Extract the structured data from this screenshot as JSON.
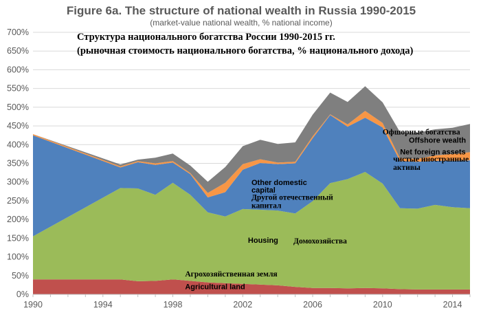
{
  "chart_data": {
    "type": "area",
    "stacked": true,
    "title": "Figure 6a. The structure of national wealth in Russia 1990-2015",
    "subtitle": "(market-value national wealth, % national income)",
    "title_ru_line1": "Структура национального богатства России 1990-2015 гг.",
    "title_ru_line2": "(рыночная стоимость национального богатства, % национального дохода)",
    "x": [
      1990,
      1995,
      1996,
      1997,
      1998,
      1999,
      2000,
      2001,
      2002,
      2003,
      2004,
      2005,
      2006,
      2007,
      2008,
      2009,
      2010,
      2011,
      2012,
      2013,
      2014,
      2015
    ],
    "xlim": [
      1990,
      2015
    ],
    "xticks": [
      1990,
      1994,
      1998,
      2002,
      2006,
      2010,
      2014
    ],
    "ylim": [
      0,
      700
    ],
    "yticks": [
      0,
      50,
      100,
      150,
      200,
      250,
      300,
      350,
      400,
      450,
      500,
      550,
      600,
      650,
      700
    ],
    "ytick_suffix": "%",
    "grid": "horizontal",
    "series": [
      {
        "name": "Agricultural land",
        "color": "#c0504d",
        "values": [
          40,
          40,
          35,
          36,
          40,
          36,
          32,
          30,
          28,
          26,
          24,
          20,
          17,
          17,
          16,
          17,
          16,
          14,
          13,
          13,
          13,
          13
        ]
      },
      {
        "name": "Housing",
        "color": "#9bbb59",
        "values": [
          115,
          244,
          248,
          230,
          258,
          230,
          187,
          178,
          200,
          200,
          200,
          196,
          232,
          280,
          292,
          310,
          280,
          216,
          216,
          226,
          220,
          217
        ]
      },
      {
        "name": "Other domestic capital",
        "color": "#4f81bd",
        "values": [
          270,
          55,
          70,
          80,
          54,
          55,
          40,
          65,
          105,
          125,
          124,
          134,
          168,
          182,
          140,
          145,
          150,
          126,
          125,
          118,
          124,
          128
        ]
      },
      {
        "name": "Net foreign assets",
        "color": "#f79646",
        "values": [
          3,
          3,
          3,
          4,
          4,
          3,
          12,
          25,
          15,
          10,
          4,
          4,
          5,
          2,
          6,
          18,
          12,
          7,
          8,
          14,
          18,
          22
        ]
      },
      {
        "name": "Offshore wealth",
        "color": "#7f7f7f",
        "values": [
          0,
          5,
          4,
          15,
          20,
          20,
          30,
          42,
          48,
          52,
          50,
          52,
          58,
          58,
          60,
          66,
          55,
          70,
          70,
          70,
          70,
          75
        ]
      }
    ],
    "annotations": [
      {
        "text": "Офшорные богатства",
        "font": "ru",
        "x": 2010.0,
        "y": 427,
        "anchor": "start"
      },
      {
        "text": "Offshore wealth",
        "font": "en",
        "x": 2011.5,
        "y": 405,
        "anchor": "start"
      },
      {
        "text": "Net foreign assets",
        "font": "en",
        "x": 2011.0,
        "y": 374,
        "anchor": "start"
      },
      {
        "text": "чистые иностранные",
        "font": "ru",
        "x": 2010.6,
        "y": 355,
        "anchor": "start"
      },
      {
        "text": "активы",
        "font": "ru",
        "x": 2010.6,
        "y": 333,
        "anchor": "start"
      },
      {
        "text": "Other domestic",
        "font": "en",
        "x": 2002.5,
        "y": 292,
        "anchor": "start"
      },
      {
        "text": "capital",
        "font": "en",
        "x": 2002.5,
        "y": 272,
        "anchor": "start"
      },
      {
        "text": "Другой отечественный",
        "font": "ru",
        "x": 2002.5,
        "y": 253,
        "anchor": "start"
      },
      {
        "text": "капитал",
        "font": "ru",
        "x": 2002.5,
        "y": 231,
        "anchor": "start"
      },
      {
        "text": "Housing",
        "font": "en",
        "x": 2002.3,
        "y": 138,
        "anchor": "start"
      },
      {
        "text": "Домохозяйства",
        "font": "ru",
        "x": 2004.9,
        "y": 136,
        "anchor": "start"
      },
      {
        "text": "Агрохозяйственная земля",
        "font": "ru",
        "x": 1998.7,
        "y": 48,
        "anchor": "start"
      },
      {
        "text": "Agricultural land",
        "font": "en",
        "x": 1998.7,
        "y": 14,
        "anchor": "start"
      }
    ]
  }
}
